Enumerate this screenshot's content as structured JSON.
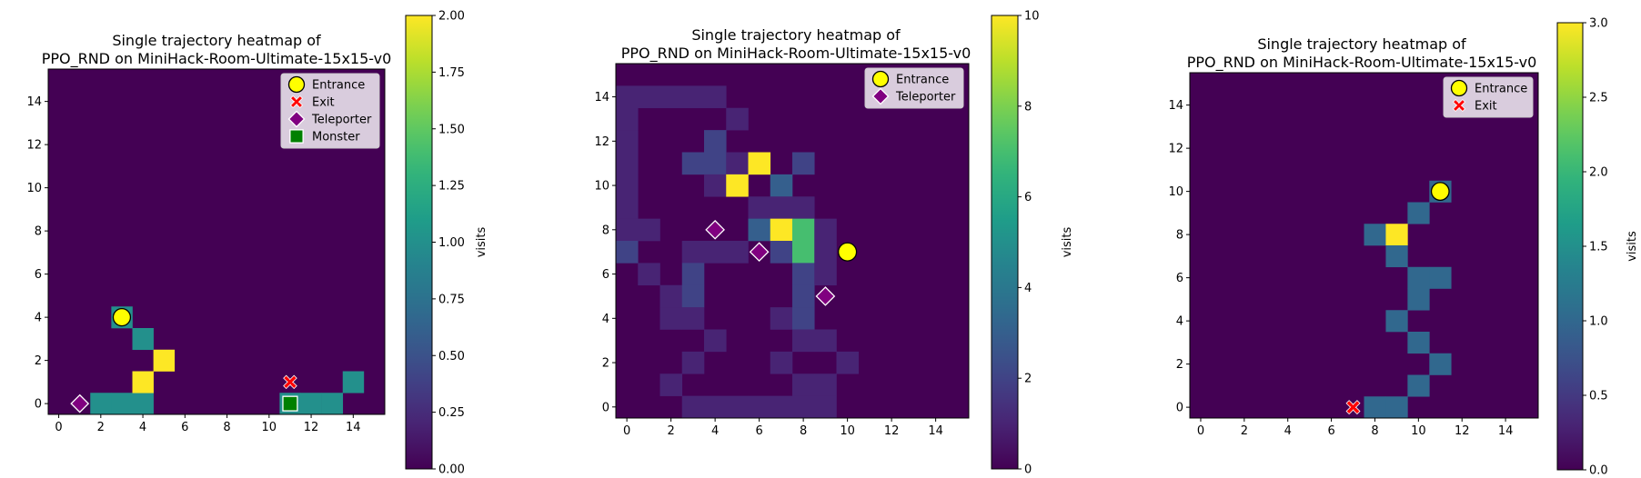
{
  "chart_data": [
    {
      "type": "heatmap",
      "title": "Single trajectory heatmap of\nPPO_RND on MiniHack-Room-Ultimate-15x15-v0",
      "grid_size": 16,
      "xlim": [
        -0.5,
        15.5
      ],
      "ylim": [
        -0.5,
        15.5
      ],
      "xticks": [
        0,
        2,
        4,
        6,
        8,
        10,
        12,
        14
      ],
      "yticks": [
        0,
        2,
        4,
        6,
        8,
        10,
        12,
        14
      ],
      "colormap": "viridis",
      "colorbar": {
        "label": "visits",
        "min": 0,
        "max": 2,
        "ticks": [
          0,
          0.25,
          0.5,
          0.75,
          1.0,
          1.25,
          1.5,
          1.75,
          2.0
        ],
        "tick_labels": [
          "0.00",
          "0.25",
          "0.50",
          "0.75",
          "1.00",
          "1.25",
          "1.50",
          "1.75",
          "2.00"
        ]
      },
      "cells": [
        {
          "x": 2,
          "y": 0,
          "v": 1
        },
        {
          "x": 3,
          "y": 0,
          "v": 1
        },
        {
          "x": 4,
          "y": 0,
          "v": 1
        },
        {
          "x": 4,
          "y": 1,
          "v": 2
        },
        {
          "x": 5,
          "y": 2,
          "v": 2
        },
        {
          "x": 4,
          "y": 3,
          "v": 1
        },
        {
          "x": 3,
          "y": 4,
          "v": 1
        },
        {
          "x": 11,
          "y": 0,
          "v": 1
        },
        {
          "x": 12,
          "y": 0,
          "v": 1
        },
        {
          "x": 13,
          "y": 0,
          "v": 1
        },
        {
          "x": 14,
          "y": 1,
          "v": 1
        }
      ],
      "markers": [
        {
          "kind": "entrance",
          "x": 3,
          "y": 4
        },
        {
          "kind": "exit",
          "x": 11,
          "y": 1
        },
        {
          "kind": "teleporter",
          "x": 1,
          "y": 0
        },
        {
          "kind": "monster",
          "x": 11,
          "y": 0
        }
      ],
      "legend": {
        "placement": "top-right",
        "entries": [
          {
            "kind": "entrance",
            "label": "Entrance"
          },
          {
            "kind": "exit",
            "label": "Exit"
          },
          {
            "kind": "teleporter",
            "label": "Teleporter"
          },
          {
            "kind": "monster",
            "label": "Monster"
          }
        ]
      }
    },
    {
      "type": "heatmap",
      "title": "Single trajectory heatmap of\nPPO_RND on MiniHack-Room-Ultimate-15x15-v0",
      "grid_size": 16,
      "xlim": [
        -0.5,
        15.5
      ],
      "ylim": [
        -0.5,
        15.5
      ],
      "xticks": [
        0,
        2,
        4,
        6,
        8,
        10,
        12,
        14
      ],
      "yticks": [
        0,
        2,
        4,
        6,
        8,
        10,
        12,
        14
      ],
      "colormap": "viridis",
      "colorbar": {
        "label": "visits",
        "min": 0,
        "max": 10,
        "ticks": [
          0,
          2,
          4,
          6,
          8,
          10
        ],
        "tick_labels": [
          "0",
          "2",
          "4",
          "6",
          "8",
          "10"
        ]
      },
      "cells": [
        {
          "x": 0,
          "y": 14,
          "v": 1
        },
        {
          "x": 1,
          "y": 14,
          "v": 1
        },
        {
          "x": 2,
          "y": 14,
          "v": 1
        },
        {
          "x": 3,
          "y": 14,
          "v": 1
        },
        {
          "x": 4,
          "y": 14,
          "v": 1
        },
        {
          "x": 0,
          "y": 13,
          "v": 1
        },
        {
          "x": 5,
          "y": 13,
          "v": 1
        },
        {
          "x": 0,
          "y": 12,
          "v": 1
        },
        {
          "x": 4,
          "y": 12,
          "v": 2
        },
        {
          "x": 0,
          "y": 11,
          "v": 1
        },
        {
          "x": 3,
          "y": 11,
          "v": 2
        },
        {
          "x": 4,
          "y": 11,
          "v": 2
        },
        {
          "x": 5,
          "y": 11,
          "v": 1
        },
        {
          "x": 6,
          "y": 11,
          "v": 10
        },
        {
          "x": 8,
          "y": 11,
          "v": 2
        },
        {
          "x": 0,
          "y": 10,
          "v": 1
        },
        {
          "x": 4,
          "y": 10,
          "v": 1
        },
        {
          "x": 5,
          "y": 10,
          "v": 10
        },
        {
          "x": 7,
          "y": 10,
          "v": 3
        },
        {
          "x": 0,
          "y": 9,
          "v": 1
        },
        {
          "x": 6,
          "y": 9,
          "v": 1
        },
        {
          "x": 7,
          "y": 9,
          "v": 1
        },
        {
          "x": 8,
          "y": 9,
          "v": 1
        },
        {
          "x": 0,
          "y": 8,
          "v": 1
        },
        {
          "x": 1,
          "y": 8,
          "v": 1
        },
        {
          "x": 6,
          "y": 8,
          "v": 3
        },
        {
          "x": 7,
          "y": 8,
          "v": 10
        },
        {
          "x": 8,
          "y": 8,
          "v": 7
        },
        {
          "x": 9,
          "y": 8,
          "v": 1
        },
        {
          "x": 0,
          "y": 7,
          "v": 2
        },
        {
          "x": 3,
          "y": 7,
          "v": 1
        },
        {
          "x": 4,
          "y": 7,
          "v": 1
        },
        {
          "x": 5,
          "y": 7,
          "v": 1
        },
        {
          "x": 7,
          "y": 7,
          "v": 2
        },
        {
          "x": 8,
          "y": 7,
          "v": 7
        },
        {
          "x": 9,
          "y": 7,
          "v": 1
        },
        {
          "x": 1,
          "y": 6,
          "v": 1
        },
        {
          "x": 3,
          "y": 6,
          "v": 2
        },
        {
          "x": 8,
          "y": 6,
          "v": 2
        },
        {
          "x": 9,
          "y": 6,
          "v": 1
        },
        {
          "x": 2,
          "y": 5,
          "v": 1
        },
        {
          "x": 3,
          "y": 5,
          "v": 2
        },
        {
          "x": 8,
          "y": 5,
          "v": 2
        },
        {
          "x": 2,
          "y": 4,
          "v": 1
        },
        {
          "x": 3,
          "y": 4,
          "v": 1
        },
        {
          "x": 7,
          "y": 4,
          "v": 1
        },
        {
          "x": 8,
          "y": 4,
          "v": 2
        },
        {
          "x": 4,
          "y": 3,
          "v": 1
        },
        {
          "x": 8,
          "y": 3,
          "v": 1
        },
        {
          "x": 9,
          "y": 3,
          "v": 1
        },
        {
          "x": 3,
          "y": 2,
          "v": 1
        },
        {
          "x": 7,
          "y": 2,
          "v": 1
        },
        {
          "x": 10,
          "y": 2,
          "v": 1
        },
        {
          "x": 2,
          "y": 1,
          "v": 1
        },
        {
          "x": 8,
          "y": 1,
          "v": 1
        },
        {
          "x": 9,
          "y": 1,
          "v": 1
        },
        {
          "x": 3,
          "y": 0,
          "v": 1
        },
        {
          "x": 4,
          "y": 0,
          "v": 1
        },
        {
          "x": 5,
          "y": 0,
          "v": 1
        },
        {
          "x": 6,
          "y": 0,
          "v": 1
        },
        {
          "x": 7,
          "y": 0,
          "v": 1
        },
        {
          "x": 8,
          "y": 0,
          "v": 1
        },
        {
          "x": 9,
          "y": 0,
          "v": 1
        }
      ],
      "markers": [
        {
          "kind": "entrance",
          "x": 10,
          "y": 7
        },
        {
          "kind": "teleporter",
          "x": 4,
          "y": 8
        },
        {
          "kind": "teleporter",
          "x": 6,
          "y": 7
        },
        {
          "kind": "teleporter",
          "x": 9,
          "y": 5
        }
      ],
      "legend": {
        "placement": "top-right",
        "entries": [
          {
            "kind": "entrance",
            "label": "Entrance"
          },
          {
            "kind": "teleporter",
            "label": "Teleporter"
          }
        ]
      }
    },
    {
      "type": "heatmap",
      "title": "Single trajectory heatmap of\nPPO_RND on MiniHack-Room-Ultimate-15x15-v0",
      "grid_size": 16,
      "xlim": [
        -0.5,
        15.5
      ],
      "ylim": [
        -0.5,
        15.5
      ],
      "xticks": [
        0,
        2,
        4,
        6,
        8,
        10,
        12,
        14
      ],
      "yticks": [
        0,
        2,
        4,
        6,
        8,
        10,
        12,
        14
      ],
      "colormap": "viridis",
      "colorbar": {
        "label": "visits",
        "min": 0,
        "max": 3,
        "ticks": [
          0,
          0.5,
          1.0,
          1.5,
          2.0,
          2.5,
          3.0
        ],
        "tick_labels": [
          "0.0",
          "0.5",
          "1.0",
          "1.5",
          "2.0",
          "2.5",
          "3.0"
        ]
      },
      "cells": [
        {
          "x": 11,
          "y": 10,
          "v": 1
        },
        {
          "x": 10,
          "y": 9,
          "v": 1
        },
        {
          "x": 8,
          "y": 8,
          "v": 1
        },
        {
          "x": 9,
          "y": 8,
          "v": 3
        },
        {
          "x": 9,
          "y": 7,
          "v": 1
        },
        {
          "x": 10,
          "y": 6,
          "v": 1
        },
        {
          "x": 11,
          "y": 6,
          "v": 1
        },
        {
          "x": 10,
          "y": 5,
          "v": 1
        },
        {
          "x": 9,
          "y": 4,
          "v": 1
        },
        {
          "x": 10,
          "y": 3,
          "v": 1
        },
        {
          "x": 11,
          "y": 2,
          "v": 1
        },
        {
          "x": 10,
          "y": 1,
          "v": 1
        },
        {
          "x": 8,
          "y": 0,
          "v": 1
        },
        {
          "x": 9,
          "y": 0,
          "v": 1
        }
      ],
      "markers": [
        {
          "kind": "entrance",
          "x": 11,
          "y": 10
        },
        {
          "kind": "exit",
          "x": 7,
          "y": 0
        }
      ],
      "legend": {
        "placement": "top-right",
        "entries": [
          {
            "kind": "entrance",
            "label": "Entrance"
          },
          {
            "kind": "exit",
            "label": "Exit"
          }
        ]
      }
    }
  ]
}
